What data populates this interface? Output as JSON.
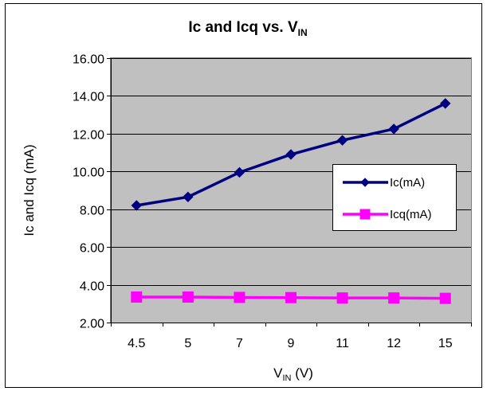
{
  "chart_data": {
    "type": "line",
    "title": {
      "main": "Ic and Icq vs. V",
      "sub": "IN"
    },
    "xlabel": {
      "main": "V",
      "sub": "IN",
      "rest": " (V)"
    },
    "ylabel": "Ic and Icq (mA)",
    "categories": [
      "4.5",
      "5",
      "7",
      "9",
      "11",
      "12",
      "15"
    ],
    "ylim": [
      2,
      16
    ],
    "yticks": [
      "2.00",
      "4.00",
      "6.00",
      "8.00",
      "10.00",
      "12.00",
      "14.00",
      "16.00"
    ],
    "grid": true,
    "legend_position": "right",
    "series": [
      {
        "name": "Ic(mA)",
        "marker": "diamond",
        "color": "#000080",
        "values": [
          8.2,
          8.65,
          9.95,
          10.9,
          11.65,
          12.25,
          13.6
        ]
      },
      {
        "name": "Icq(mA)",
        "marker": "square",
        "color": "#ff00ff",
        "values": [
          3.35,
          3.35,
          3.33,
          3.32,
          3.3,
          3.3,
          3.28
        ]
      }
    ],
    "colors": {
      "plot_bg": "#c0c0c0",
      "gridline": "#000000"
    }
  }
}
